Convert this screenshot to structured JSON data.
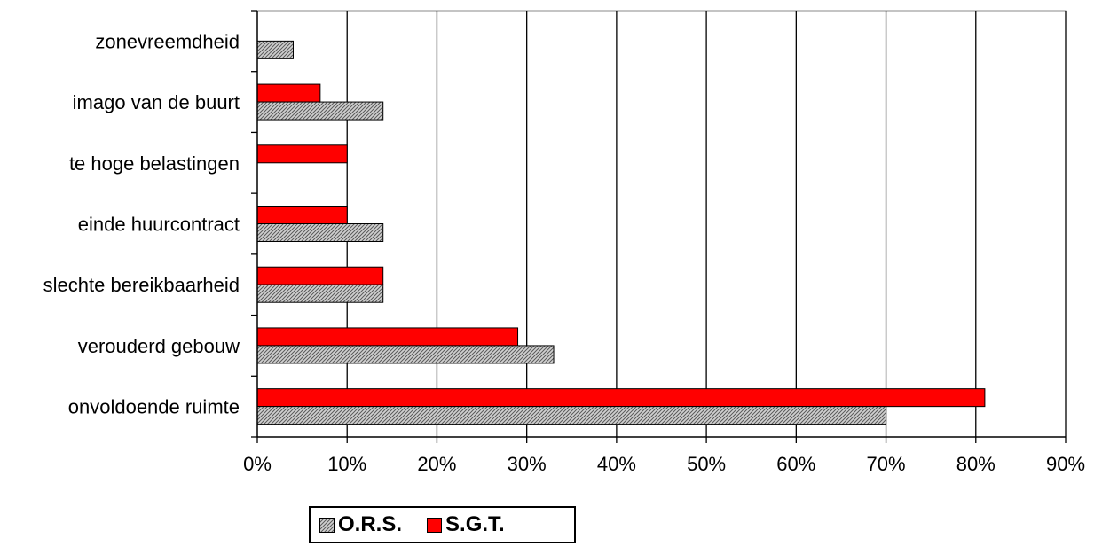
{
  "chart_data": {
    "type": "bar",
    "orientation": "horizontal",
    "categories": [
      "onvoldoende ruimte",
      "verouderd gebouw",
      "slechte bereikbaarheid",
      "einde huurcontract",
      "te hoge belastingen",
      "imago van de buurt",
      "zonevreemdheid"
    ],
    "series": [
      {
        "name": "O.R.S.",
        "values": [
          70,
          33,
          14,
          14,
          0,
          14,
          4
        ],
        "color": "#c8c8c8",
        "pattern": "hatched"
      },
      {
        "name": "S.G.T.",
        "values": [
          81,
          29,
          14,
          10,
          10,
          7,
          0
        ],
        "color": "#ff0000",
        "pattern": "solid"
      }
    ],
    "xlim": [
      0,
      90
    ],
    "xticks": [
      "0%",
      "10%",
      "20%",
      "30%",
      "40%",
      "50%",
      "60%",
      "70%",
      "80%",
      "90%"
    ],
    "grid": "vertical",
    "legend_position": "bottom",
    "title": "",
    "xlabel": "",
    "ylabel": ""
  }
}
